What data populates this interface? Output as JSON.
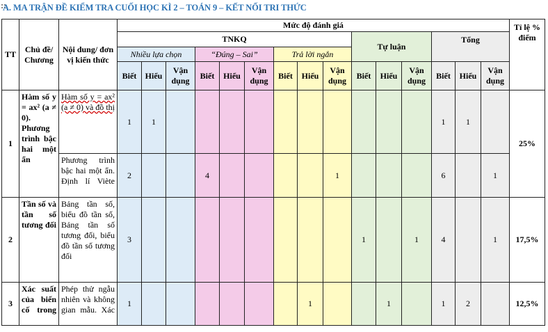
{
  "doc": {
    "title": "A. MA TRẬN ĐỀ KIỂM TRA CUỐI HỌC KÌ 2 – TOÁN 9 – KẾT NỐI TRI THỨC"
  },
  "header": {
    "tt": "TT",
    "chapter": "Chủ đề/ Chương",
    "content": "Nội dung/ đơn vị kiến thức",
    "level": "Mức độ đánh giá",
    "tnkq": "TNKQ",
    "mc": "Nhiều lựa chọn",
    "tf": "“Đúng – Sai”",
    "short": "Trả lời ngắn",
    "essay": "Tự luận",
    "total": "Tổng",
    "percent": "Tỉ lệ % điểm",
    "biet": "Biết",
    "hieu": "Hiểu",
    "vandung": "Vận dụng"
  },
  "rows": [
    {
      "tt": "1",
      "chapter": "Hàm số y = ax² (a ≠ 0). Phương trình bậc hai một ẩn",
      "percent": "25%",
      "subrows": [
        {
          "content": "Hàm số y = ax² (a ≠ 0) và đồ thị",
          "cells": [
            "1",
            "1",
            "",
            "",
            "",
            "",
            "",
            "",
            "",
            "",
            "",
            "",
            "1",
            "1",
            ""
          ]
        },
        {
          "content": "Phương trình bậc hai một ẩn. Định lí Viète",
          "cells": [
            "2",
            "",
            "",
            "4",
            "",
            "",
            "",
            "",
            "1",
            "",
            "",
            "",
            "6",
            "",
            "1"
          ]
        }
      ]
    },
    {
      "tt": "2",
      "chapter": "Tần số và tần số tương đối",
      "content": "Bảng tần số, biểu đồ tần số, Bảng tần số tương đối, biểu đồ tần số tương đối",
      "percent": "17,5%",
      "cells": [
        "3",
        "",
        "",
        "",
        "",
        "",
        "",
        "",
        "",
        "1",
        "",
        "1",
        "4",
        "",
        "1"
      ]
    },
    {
      "tt": "3",
      "chapter": "Xác suất của biến cố trong",
      "content": "Phép thử ngẫu nhiên và không gian mẫu. Xác",
      "percent": "12,5%",
      "cells": [
        "1",
        "",
        "",
        "",
        "",
        "",
        "",
        "1",
        "",
        "",
        "1",
        "",
        "1",
        "2",
        ""
      ]
    }
  ]
}
